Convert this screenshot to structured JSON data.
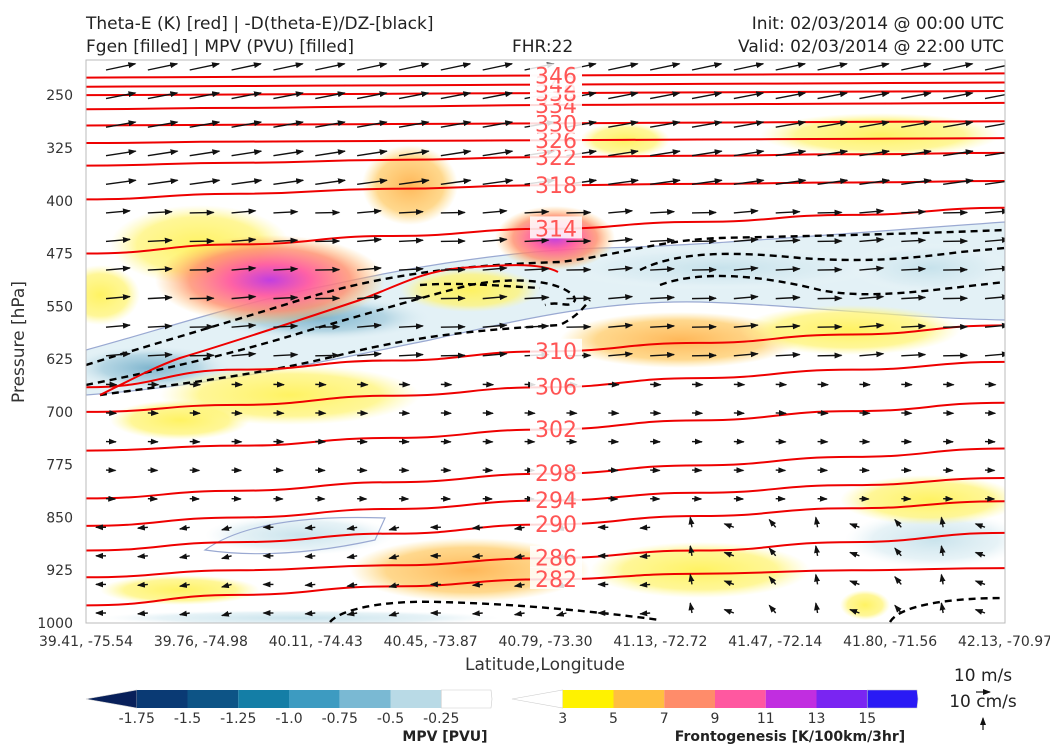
{
  "header": {
    "title_left_1": "Theta-E (K) [red] | -D(theta-E)/DZ-[black]",
    "title_left_2": "Fgen [filled] | MPV (PVU) [filled]",
    "title_center": "FHR:22",
    "title_right_1": "Init: 02/03/2014 @ 00:00 UTC",
    "title_right_2": "Valid: 02/03/2014 @ 22:00 UTC"
  },
  "chart_data": {
    "type": "cross-section",
    "xlabel": "Latitude,Longitude",
    "ylabel": "Pressure [hPa]",
    "x_ticks": [
      "39.41, -75.54",
      "39.76, -74.98",
      "40.11, -74.43",
      "40.45, -73.87",
      "40.79, -73.30",
      "41.13, -72.72",
      "41.47, -72.14",
      "41.80, -71.56",
      "42.13, -70.97"
    ],
    "y_ticks": [
      "250",
      "325",
      "400",
      "475",
      "550",
      "625",
      "700",
      "775",
      "850",
      "925",
      "1000"
    ],
    "y_values": [
      250,
      325,
      400,
      475,
      550,
      625,
      700,
      775,
      850,
      925,
      1000
    ],
    "ylim": [
      1000,
      200
    ],
    "theta_e_contours": [
      {
        "label": "282",
        "values": [
          975,
          960,
          948,
          938,
          930,
          925,
          922
        ]
      },
      {
        "label": "286",
        "values": [
          935,
          925,
          918,
          908,
          897,
          885,
          872
        ]
      },
      {
        "label": "290",
        "values": [
          897,
          885,
          873,
          860,
          848,
          837,
          827
        ]
      },
      {
        "label": "294",
        "values": [
          862,
          850,
          838,
          826,
          815,
          804,
          794
        ]
      },
      {
        "label": "298",
        "values": [
          823,
          812,
          800,
          788,
          776,
          764,
          752
        ]
      },
      {
        "label": "302",
        "values": [
          755,
          748,
          737,
          725,
          712,
          699,
          687
        ]
      },
      {
        "label": "306",
        "values": [
          700,
          690,
          677,
          665,
          652,
          640,
          629
        ]
      },
      {
        "label": "310",
        "values": [
          665,
          640,
          627,
          614,
          602,
          590,
          577
        ]
      },
      {
        "label": "314",
        "values": [
          475,
          462,
          450,
          440,
          430,
          420,
          410
        ]
      },
      {
        "label": "318",
        "values": [
          398,
          390,
          383,
          378,
          376,
          374,
          372
        ]
      },
      {
        "label": "322",
        "values": [
          350,
          346,
          342,
          338,
          336,
          334,
          332
        ]
      },
      {
        "label": "326",
        "values": [
          318,
          316,
          315,
          314,
          313,
          312,
          311
        ]
      },
      {
        "label": "330",
        "values": [
          293,
          292,
          291,
          290,
          289,
          288,
          287
        ]
      },
      {
        "label": "334",
        "values": [
          270,
          268,
          266,
          264,
          263,
          262,
          261
        ]
      },
      {
        "label": "338",
        "values": [
          250,
          249,
          248,
          247,
          246,
          245,
          244
        ]
      },
      {
        "label": "342",
        "values": [
          238,
          237,
          236,
          235,
          234,
          233,
          232
        ]
      },
      {
        "label": "346",
        "values": [
          225,
          224,
          223,
          222,
          221,
          220,
          219
        ]
      }
    ],
    "mpv_colorbar": {
      "title": "MPV [PVU]",
      "labels": [
        "-1.75",
        "-1.5",
        "-1.25",
        "-1.0",
        "-0.75",
        "-0.5",
        "-0.25"
      ],
      "colors": [
        "#08205a",
        "#0a3a74",
        "#0d5486",
        "#147ea6",
        "#3d9bc1",
        "#7ab9d3",
        "#b9dae6",
        "#ffffff"
      ]
    },
    "fgen_colorbar": {
      "title": "Frontogenesis [K/100km/3hr]",
      "labels": [
        "3",
        "5",
        "7",
        "9",
        "11",
        "13",
        "15"
      ],
      "colors": [
        "#ffffff",
        "#fff200",
        "#ffbf40",
        "#ff8c6a",
        "#ff58a0",
        "#c12ee0",
        "#7a25f2",
        "#2a1af5"
      ]
    },
    "reference_vectors": [
      "10 m/s",
      "10 cm/s"
    ],
    "colors": {
      "theta_e": "#ee0000",
      "stability": "#000000",
      "mpv_outline": "#9aa9d2"
    }
  }
}
